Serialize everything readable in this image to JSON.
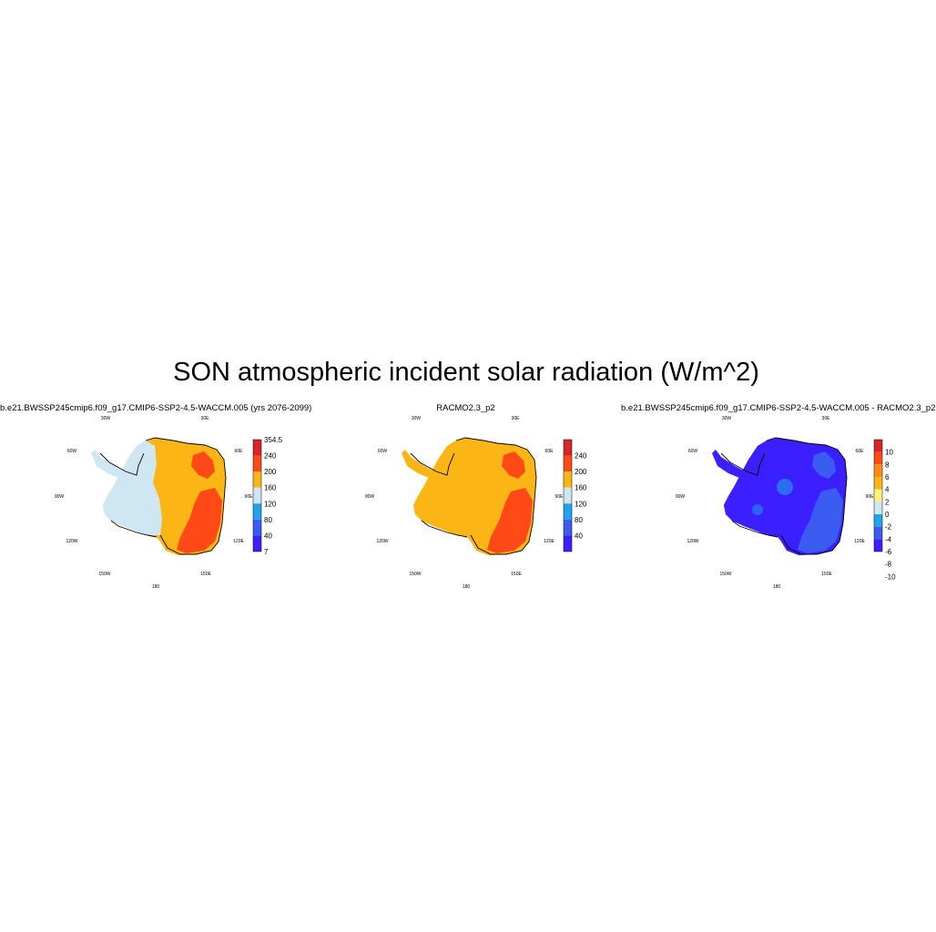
{
  "title": "SON atmospheric incident solar radiation (W/m^2)",
  "lon_labels": [
    "30W",
    "30E",
    "60W",
    "60E",
    "90W",
    "90E",
    "120W",
    "120E",
    "150W",
    "150E",
    "180"
  ],
  "panels": [
    {
      "title": "b.e21.BWSSP245cmip6.f09_g17.CMIP6-SSP2-4.5-WACCM.005 (yrs 2076-2099)",
      "colorbar": {
        "colors": [
          "#3a1fff",
          "#3b5cf0",
          "#21a3ee",
          "#cfe6f3",
          "#fbb616",
          "#ff4a17",
          "#d6262a"
        ],
        "labels": [
          "354.5",
          "240",
          "200",
          "160",
          "120",
          "80",
          "40",
          "7"
        ]
      },
      "fields": {
        "base": "#fbb616",
        "west": "#cfe6f3",
        "peninsula": "#cfe6f3",
        "hot": "#ff4a17"
      }
    },
    {
      "title": "RACMO2.3_p2",
      "colorbar": {
        "colors": [
          "#3a1fff",
          "#3b5cf0",
          "#21a3ee",
          "#cfe6f3",
          "#fbb616",
          "#ff4a17",
          "#d6262a"
        ],
        "labels": [
          "240",
          "200",
          "160",
          "120",
          "80",
          "40"
        ]
      },
      "fields": {
        "base": "#fbb616",
        "west": "#fbb616",
        "peninsula": "#fbb616",
        "hot": "#ff4a17"
      }
    },
    {
      "title": "b.e21.BWSSP245cmip6.f09_g17.CMIP6-SSP2-4.5-WACCM.005 - RACMO2.3_p2",
      "colorbar": {
        "colors": [
          "#3a1fff",
          "#3b5cf0",
          "#21a3ee",
          "#cfe6f3",
          "#fff37a",
          "#fbb616",
          "#ff8a1a",
          "#ff4a17",
          "#d6262a"
        ],
        "labels": [
          "10",
          "8",
          "6",
          "4",
          "2",
          "0",
          "-2",
          "-4",
          "-6",
          "-8",
          "-10"
        ]
      },
      "fields": {
        "base": "#3a1fff",
        "west": "#3a1fff",
        "peninsula": "#3a1fff",
        "hot": "#3b5cf0"
      }
    }
  ]
}
